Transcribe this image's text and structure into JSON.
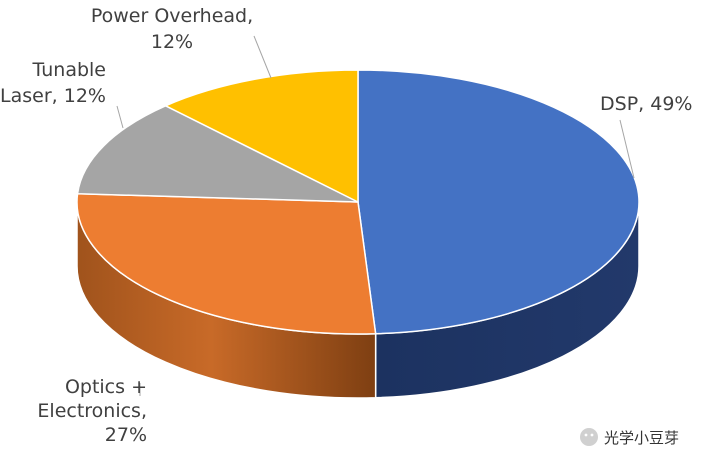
{
  "chart_data": {
    "type": "pie",
    "style": "3d",
    "slices": [
      {
        "name": "DSP",
        "value": 49,
        "color": "#4472C4",
        "label_lines": [
          "DSP, 49%"
        ]
      },
      {
        "name": "Optics + Electronics",
        "value": 27,
        "color": "#ED7D31",
        "label_lines": [
          "Optics +",
          "Electronics,",
          "27%"
        ]
      },
      {
        "name": "Tunable Laser",
        "value": 12,
        "color": "#A5A5A5",
        "label_lines": [
          "Tunable",
          "Laser, 12%"
        ]
      },
      {
        "name": "Power Overhead",
        "value": 12,
        "color": "#FFC000",
        "label_lines": [
          "Power Overhead,",
          "12%"
        ]
      }
    ]
  },
  "watermark": {
    "text": "光学小豆芽"
  }
}
